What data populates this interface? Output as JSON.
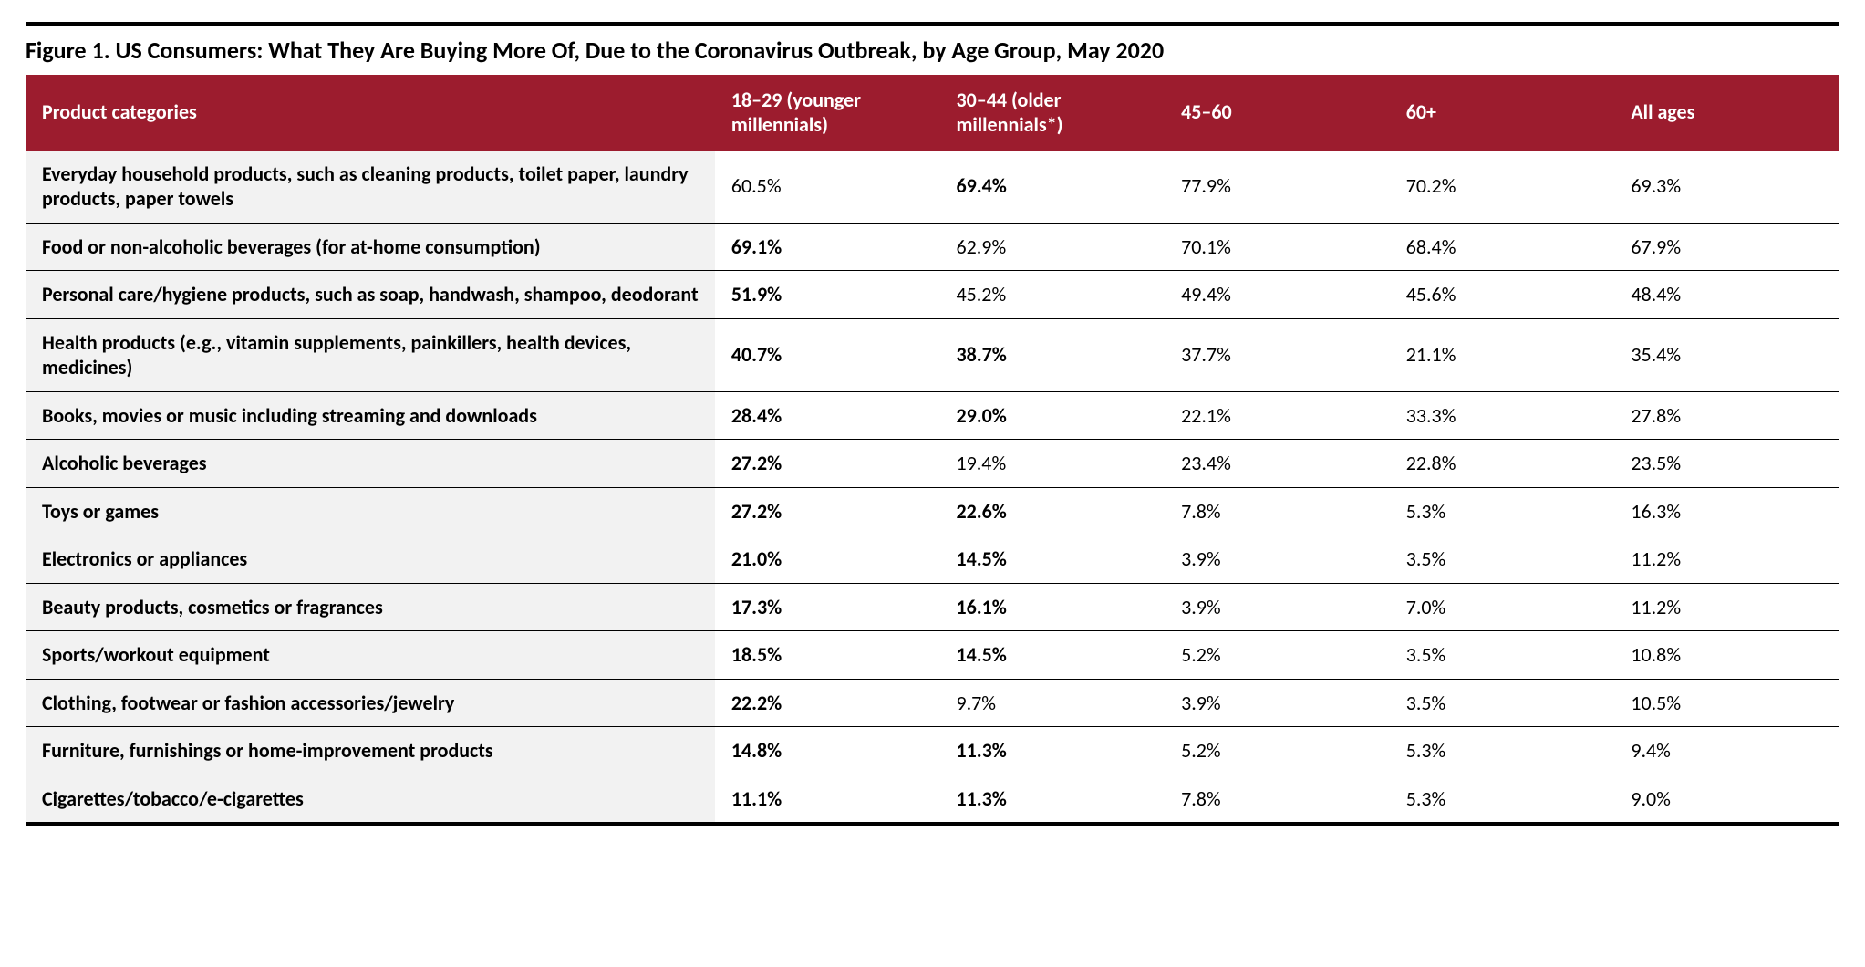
{
  "figure": {
    "title": "Figure 1. US Consumers: What They Are Buying More Of, Due to the Coronavirus Outbreak, by Age Group, May 2020",
    "header_bg": "#9c1c2e",
    "header_fg": "#ffffff",
    "cat_bg": "#f2f2f2",
    "rule_color": "#000000",
    "columns": [
      "Product categories",
      "18–29 (younger millennials)",
      "30–44 (older millennials*)",
      "45–60",
      "60+",
      "All ages"
    ],
    "rows": [
      {
        "category": "Everyday household products, such as cleaning products, toilet paper, laundry products, paper towels",
        "values": [
          "60.5%",
          "69.4%",
          "77.9%",
          "70.2%",
          "69.3%"
        ],
        "bold": [
          false,
          true,
          false,
          false,
          false
        ]
      },
      {
        "category": "Food or non-alcoholic beverages (for at-home consumption)",
        "values": [
          "69.1%",
          "62.9%",
          "70.1%",
          "68.4%",
          "67.9%"
        ],
        "bold": [
          true,
          false,
          false,
          false,
          false
        ]
      },
      {
        "category": "Personal care/hygiene products, such as soap, handwash, shampoo, deodorant",
        "values": [
          "51.9%",
          "45.2%",
          "49.4%",
          "45.6%",
          "48.4%"
        ],
        "bold": [
          true,
          false,
          false,
          false,
          false
        ]
      },
      {
        "category": "Health products (e.g., vitamin supplements, painkillers, health devices, medicines)",
        "values": [
          "40.7%",
          "38.7%",
          "37.7%",
          "21.1%",
          "35.4%"
        ],
        "bold": [
          true,
          true,
          false,
          false,
          false
        ]
      },
      {
        "category": "Books, movies or music including streaming and downloads",
        "values": [
          "28.4%",
          "29.0%",
          "22.1%",
          "33.3%",
          "27.8%"
        ],
        "bold": [
          true,
          true,
          false,
          false,
          false
        ]
      },
      {
        "category": "Alcoholic beverages",
        "values": [
          "27.2%",
          "19.4%",
          "23.4%",
          "22.8%",
          "23.5%"
        ],
        "bold": [
          true,
          false,
          false,
          false,
          false
        ]
      },
      {
        "category": "Toys or games",
        "values": [
          "27.2%",
          "22.6%",
          "7.8%",
          "5.3%",
          "16.3%"
        ],
        "bold": [
          true,
          true,
          false,
          false,
          false
        ]
      },
      {
        "category": "Electronics or appliances",
        "values": [
          "21.0%",
          "14.5%",
          "3.9%",
          "3.5%",
          "11.2%"
        ],
        "bold": [
          true,
          true,
          false,
          false,
          false
        ]
      },
      {
        "category": "Beauty products, cosmetics or fragrances",
        "values": [
          "17.3%",
          "16.1%",
          "3.9%",
          "7.0%",
          "11.2%"
        ],
        "bold": [
          true,
          true,
          false,
          false,
          false
        ]
      },
      {
        "category": "Sports/workout equipment",
        "values": [
          "18.5%",
          "14.5%",
          "5.2%",
          "3.5%",
          "10.8%"
        ],
        "bold": [
          true,
          true,
          false,
          false,
          false
        ]
      },
      {
        "category": "Clothing, footwear or fashion accessories/jewelry",
        "values": [
          "22.2%",
          "9.7%",
          "3.9%",
          "3.5%",
          "10.5%"
        ],
        "bold": [
          true,
          false,
          false,
          false,
          false
        ]
      },
      {
        "category": "Furniture, furnishings or home-improvement products",
        "values": [
          "14.8%",
          "11.3%",
          "5.2%",
          "5.3%",
          "9.4%"
        ],
        "bold": [
          true,
          true,
          false,
          false,
          false
        ]
      },
      {
        "category": "Cigarettes/tobacco/e-cigarettes",
        "values": [
          "11.1%",
          "11.3%",
          "7.8%",
          "5.3%",
          "9.0%"
        ],
        "bold": [
          true,
          true,
          false,
          false,
          false
        ]
      }
    ]
  }
}
